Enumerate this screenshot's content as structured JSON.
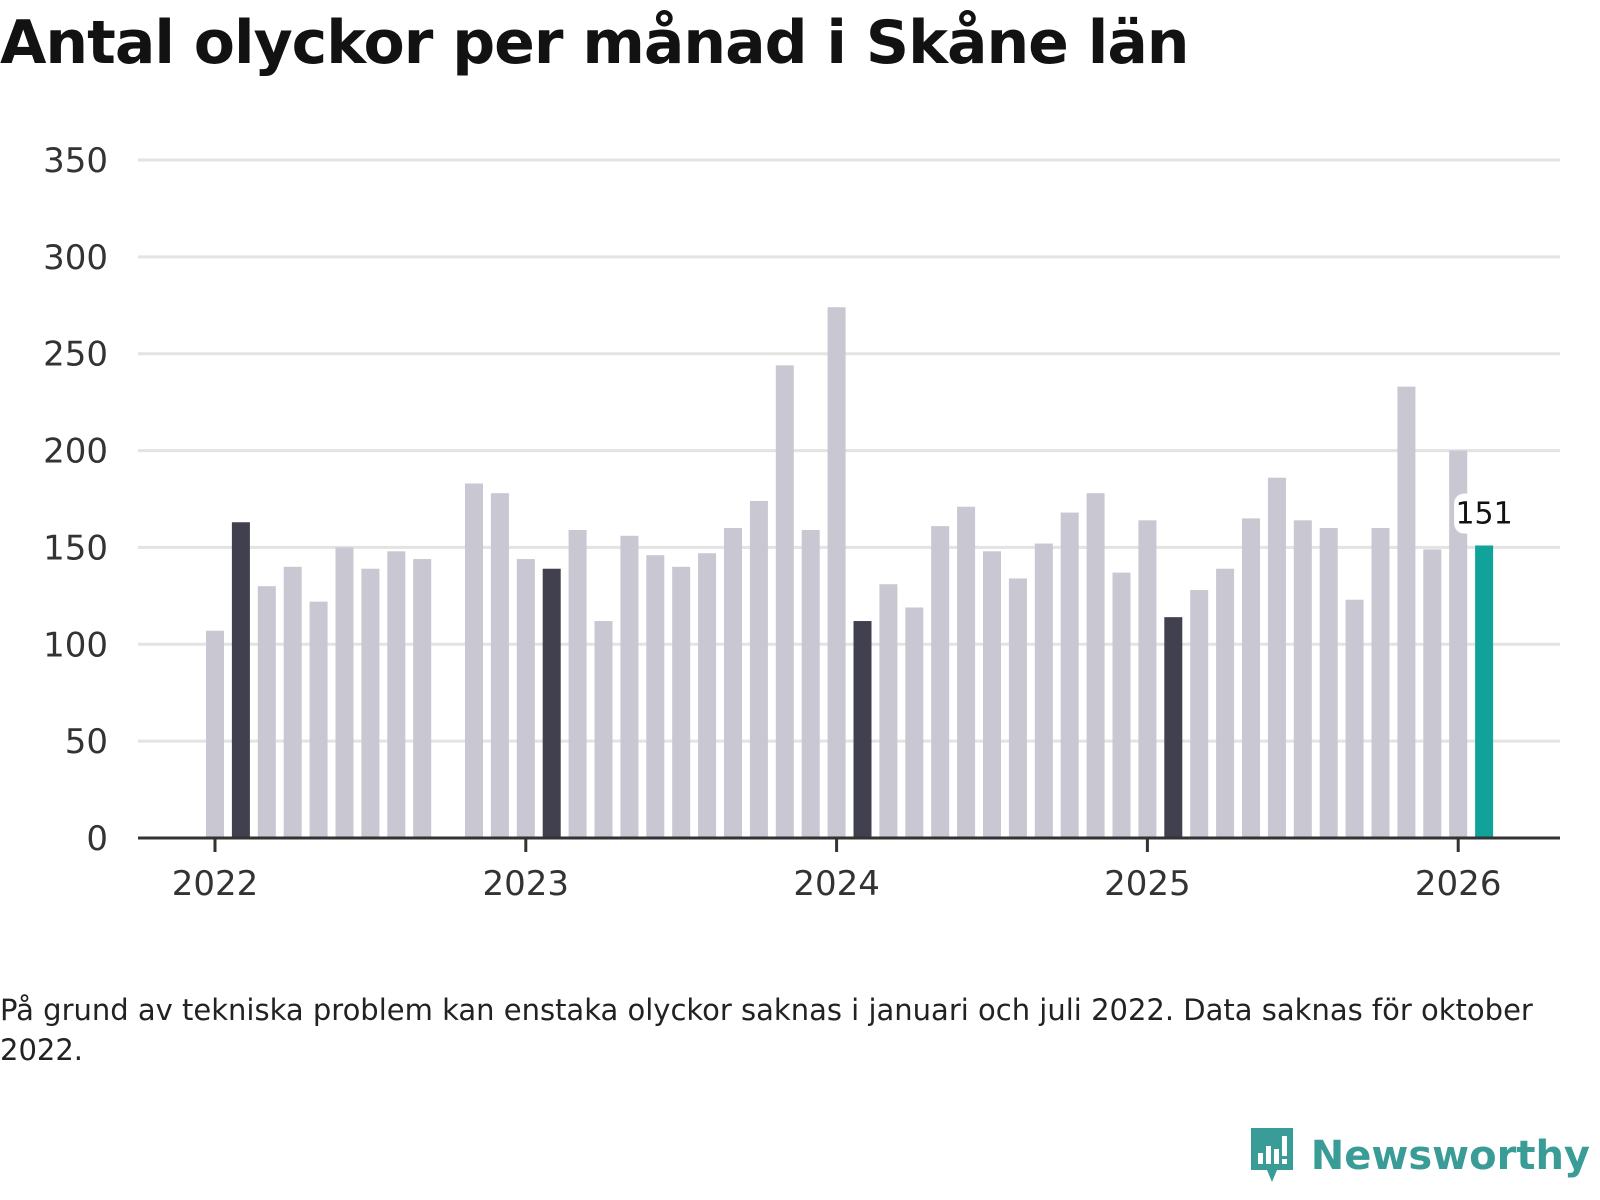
{
  "chart_data": {
    "type": "bar",
    "title": "Antal olyckor per månad i Skåne län",
    "xlabel": "",
    "ylabel": "",
    "ylim": [
      0,
      350
    ],
    "yticks": [
      0,
      50,
      100,
      150,
      200,
      250,
      300,
      350
    ],
    "xticks": [
      {
        "label": "2022",
        "index": 0
      },
      {
        "label": "2023",
        "index": 12
      },
      {
        "label": "2024",
        "index": 24
      },
      {
        "label": "2025",
        "index": 36
      },
      {
        "label": "2026",
        "index": 48
      }
    ],
    "months": [
      "2022-01",
      "2022-02",
      "2022-03",
      "2022-04",
      "2022-05",
      "2022-06",
      "2022-07",
      "2022-08",
      "2022-09",
      "2022-10",
      "2022-11",
      "2022-12",
      "2023-01",
      "2023-02",
      "2023-03",
      "2023-04",
      "2023-05",
      "2023-06",
      "2023-07",
      "2023-08",
      "2023-09",
      "2023-10",
      "2023-11",
      "2023-12",
      "2024-01",
      "2024-02",
      "2024-03",
      "2024-04",
      "2024-05",
      "2024-06",
      "2024-07",
      "2024-08",
      "2024-09",
      "2024-10",
      "2024-11",
      "2024-12",
      "2025-01",
      "2025-02",
      "2025-03",
      "2025-04",
      "2025-05",
      "2025-06",
      "2025-07",
      "2025-08",
      "2025-09",
      "2025-10",
      "2025-11",
      "2025-12",
      "2026-01",
      "2026-02"
    ],
    "values": [
      107,
      163,
      130,
      140,
      122,
      150,
      139,
      148,
      144,
      null,
      183,
      178,
      144,
      139,
      159,
      112,
      156,
      146,
      140,
      147,
      160,
      174,
      244,
      159,
      274,
      112,
      131,
      119,
      161,
      171,
      148,
      134,
      152,
      168,
      178,
      137,
      164,
      114,
      128,
      139,
      165,
      186,
      164,
      160,
      123,
      160,
      233,
      149,
      200,
      151
    ],
    "highlight_months": [
      "2022-02",
      "2023-02",
      "2024-02",
      "2025-02"
    ],
    "current_month": "2026-02",
    "data_label": "151",
    "colors": {
      "default": "#c8c7d2",
      "highlight": "#40404e",
      "current": "#11a39a",
      "grid": "#e3e3e3",
      "axis": "#333333"
    }
  },
  "footnote": "På grund av tekniska problem kan enstaka olyckor saknas i januari och juli 2022. Data saknas för oktober 2022.",
  "brand": {
    "name": "Newsworthy",
    "color": "#3a9c97"
  }
}
